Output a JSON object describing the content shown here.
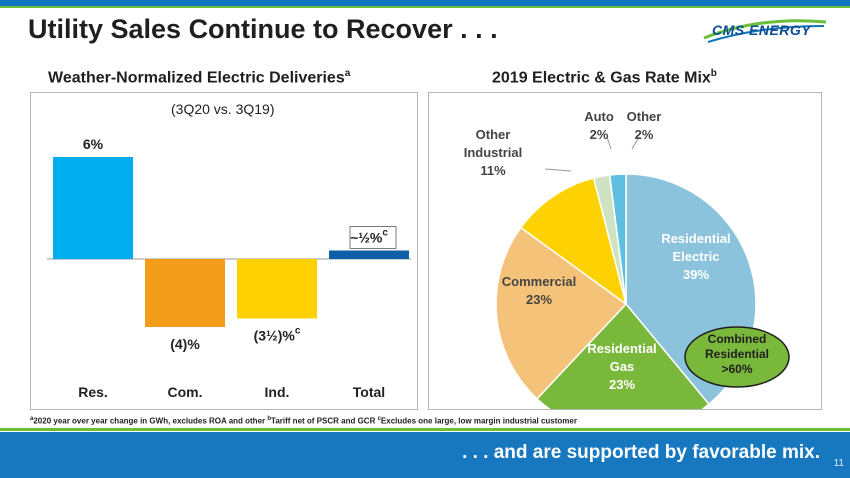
{
  "title": "Utility Sales Continue to Recover . . .",
  "brand": {
    "logo_text": "CMS ENERGY"
  },
  "left": {
    "heading": "Weather-Normalized Electric Deliveries",
    "heading_sup": "a",
    "subtitle": "(3Q20 vs. 3Q19)",
    "chart_data": {
      "type": "bar",
      "categories": [
        "Res.",
        "Com.",
        "Ind.",
        "Total"
      ],
      "values": [
        6,
        -4,
        -3.5,
        0.5
      ],
      "value_labels": [
        "6%",
        "(4)%",
        "(3½)%",
        "~½%"
      ],
      "label_superscripts": [
        "",
        "",
        "c",
        "c"
      ],
      "colors": [
        "#00aeef",
        "#f39c1a",
        "#fdd102",
        "#0f5fa8"
      ]
    }
  },
  "right": {
    "heading": "2019 Electric & Gas Rate Mix",
    "heading_sup": "b",
    "chart_data": {
      "type": "pie",
      "slices": [
        {
          "label": "Residential Electric",
          "value": 39,
          "display": "39%",
          "color": "#8cc3dc"
        },
        {
          "label": "Residential Gas",
          "value": 23,
          "display": "23%",
          "color": "#7ab83c"
        },
        {
          "label": "Commercial",
          "value": 23,
          "display": "23%",
          "color": "#f5c27a"
        },
        {
          "label": "Other Industrial",
          "value": 11,
          "display": "11%",
          "color": "#fdd102"
        },
        {
          "label": "Auto",
          "value": 2,
          "display": "2%",
          "color": "#cfe3c2"
        },
        {
          "label": "Other",
          "value": 2,
          "display": "2%",
          "color": "#5fbfe0"
        }
      ],
      "callout": {
        "line1": "Combined",
        "line2": "Residential",
        "line3": ">60%"
      }
    }
  },
  "footnotes": {
    "a": "2020 year over year change in GWh, excludes ROA and other",
    "b": "Tariff net of PSCR and GCR",
    "c": "Excludes one large, low margin industrial customer"
  },
  "tagline": ". . . and are supported by favorable mix.",
  "page_number": "11"
}
